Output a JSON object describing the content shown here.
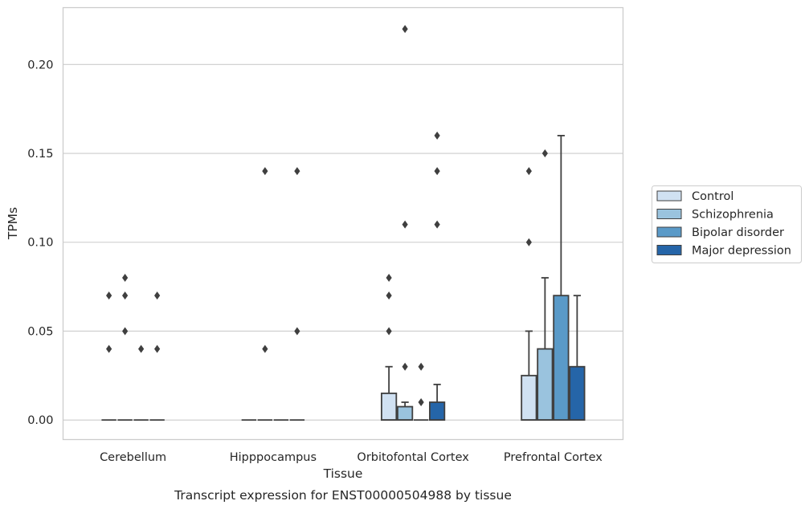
{
  "chart_data": {
    "type": "box",
    "caption": "Transcript expression for ENST00000504988 by tissue",
    "xlabel": "Tissue",
    "ylabel": "TPMs",
    "ylim": [
      -0.011,
      0.232
    ],
    "yticks": [
      "0.00",
      "0.05",
      "0.10",
      "0.15",
      "0.20"
    ],
    "ytick_values": [
      0.0,
      0.05,
      0.1,
      0.15,
      0.2
    ],
    "grid": "horizontal",
    "legend_position": "right",
    "categories": [
      "Cerebellum",
      "Hipppocampus",
      "Orbitofontal Cortex",
      "Prefrontal Cortex"
    ],
    "series": [
      {
        "name": "Control",
        "color": "#d0e1f2",
        "boxes": [
          {
            "q1": 0,
            "median": 0,
            "q3": 0,
            "whisker_low": 0,
            "whisker_high": 0,
            "outliers": [
              0.04,
              0.07
            ]
          },
          {
            "q1": 0,
            "median": 0,
            "q3": 0,
            "whisker_low": 0,
            "whisker_high": 0,
            "outliers": []
          },
          {
            "q1": 0,
            "median": 0,
            "q3": 0.015,
            "whisker_low": 0,
            "whisker_high": 0.03,
            "outliers": [
              0.05,
              0.07,
              0.08
            ]
          },
          {
            "q1": 0,
            "median": 0,
            "q3": 0.025,
            "whisker_low": 0,
            "whisker_high": 0.05,
            "outliers": [
              0.1,
              0.14
            ]
          }
        ]
      },
      {
        "name": "Schizophrenia",
        "color": "#9ac3de",
        "boxes": [
          {
            "q1": 0,
            "median": 0,
            "q3": 0,
            "whisker_low": 0,
            "whisker_high": 0,
            "outliers": [
              0.05,
              0.07,
              0.08
            ]
          },
          {
            "q1": 0,
            "median": 0,
            "q3": 0,
            "whisker_low": 0,
            "whisker_high": 0,
            "outliers": [
              0.04,
              0.14
            ]
          },
          {
            "q1": 0,
            "median": 0,
            "q3": 0.0075,
            "whisker_low": 0,
            "whisker_high": 0.01,
            "outliers": [
              0.03,
              0.11,
              0.22
            ]
          },
          {
            "q1": 0,
            "median": 0,
            "q3": 0.04,
            "whisker_low": 0,
            "whisker_high": 0.08,
            "outliers": [
              0.15
            ]
          }
        ]
      },
      {
        "name": "Bipolar disorder",
        "color": "#5a9ac8",
        "boxes": [
          {
            "q1": 0,
            "median": 0,
            "q3": 0,
            "whisker_low": 0,
            "whisker_high": 0,
            "outliers": [
              0.04
            ]
          },
          {
            "q1": 0,
            "median": 0,
            "q3": 0,
            "whisker_low": 0,
            "whisker_high": 0,
            "outliers": []
          },
          {
            "q1": 0,
            "median": 0,
            "q3": 0,
            "whisker_low": 0,
            "whisker_high": 0,
            "outliers": [
              0.01,
              0.03
            ]
          },
          {
            "q1": 0,
            "median": 0,
            "q3": 0.07,
            "whisker_low": 0,
            "whisker_high": 0.16,
            "outliers": []
          }
        ]
      },
      {
        "name": "Major depression",
        "color": "#2565a8",
        "boxes": [
          {
            "q1": 0,
            "median": 0,
            "q3": 0,
            "whisker_low": 0,
            "whisker_high": 0,
            "outliers": [
              0.04,
              0.07
            ]
          },
          {
            "q1": 0,
            "median": 0,
            "q3": 0,
            "whisker_low": 0,
            "whisker_high": 0,
            "outliers": [
              0.05,
              0.14
            ]
          },
          {
            "q1": 0,
            "median": 0,
            "q3": 0.01,
            "whisker_low": 0,
            "whisker_high": 0.02,
            "outliers": [
              0.11,
              0.14,
              0.16
            ]
          },
          {
            "q1": 0,
            "median": 0,
            "q3": 0.03,
            "whisker_low": 0,
            "whisker_high": 0.07,
            "outliers": []
          }
        ]
      }
    ]
  }
}
